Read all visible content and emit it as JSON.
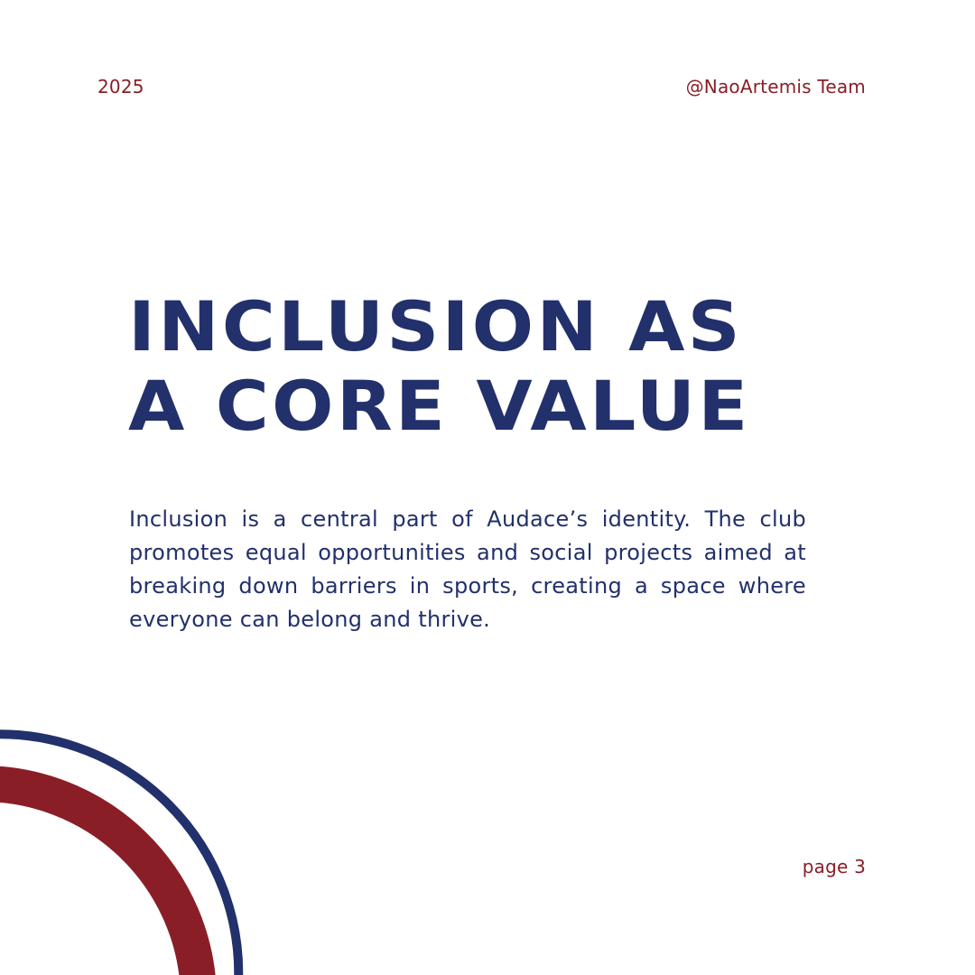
{
  "header": {
    "year": "2025",
    "team": "@NaoArtemis Team"
  },
  "content": {
    "title_line_1": "INCLUSION AS",
    "title_line_2": "A CORE VALUE",
    "body": "Inclusion is a central part of Audace’s identity. The club promotes equal opportunities and social projects aimed at breaking down barriers in sports, creating a space where everyone can belong and thrive."
  },
  "footer": {
    "page": "page 3"
  },
  "colors": {
    "navy": "#22306b",
    "red": "#8a1e27",
    "background": "#ffffff"
  }
}
